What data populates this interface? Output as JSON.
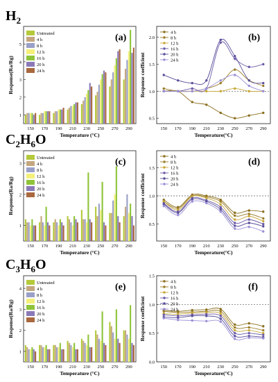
{
  "series_colors": [
    "#b5c93b",
    "#c4a77f",
    "#9aa0c8",
    "#f4f07a",
    "#8fc43a",
    "#8b7ab8",
    "#a9683e"
  ],
  "line_colors": [
    "#8b6f1e",
    "#9a7e2a",
    "#c7a83a",
    "#6b5aa7",
    "#5a4e9a",
    "#9b8fd6",
    "#1a1a1a"
  ],
  "chart_data": [
    {
      "panel": "(a)",
      "gas": "H2",
      "type": "bar",
      "ylabel": "Response(Ra/Rg)",
      "xlabel": "Temperature (°C)",
      "categories": [
        "150",
        "170",
        "190",
        "210",
        "230",
        "250",
        "270",
        "290"
      ],
      "ylim": [
        0.5,
        6.0
      ],
      "yticks": [
        1,
        2,
        3,
        4,
        5
      ],
      "series": [
        {
          "name": "Untreated",
          "values": [
            1.0,
            1.0,
            1.1,
            1.3,
            1.6,
            2.1,
            2.6,
            3.0
          ]
        },
        {
          "name": "4 h",
          "values": [
            1.1,
            1.1,
            1.2,
            1.4,
            1.8,
            2.3,
            3.0,
            3.6
          ]
        },
        {
          "name": "8 h",
          "values": [
            1.1,
            1.1,
            1.2,
            1.5,
            2.0,
            2.7,
            3.4,
            4.1
          ]
        },
        {
          "name": "12 h",
          "values": [
            1.1,
            1.2,
            1.3,
            1.5,
            2.2,
            3.0,
            3.8,
            4.6
          ]
        },
        {
          "name": "16 h",
          "values": [
            1.1,
            1.2,
            1.3,
            1.6,
            2.4,
            3.3,
            4.2,
            5.8
          ]
        },
        {
          "name": "20 h",
          "values": [
            1.0,
            1.2,
            1.3,
            1.7,
            2.8,
            3.5,
            4.6,
            4.5
          ]
        },
        {
          "name": "24 h",
          "values": [
            1.1,
            1.2,
            1.4,
            1.7,
            2.6,
            3.4,
            4.7,
            4.8
          ]
        }
      ]
    },
    {
      "panel": "(b)",
      "type": "line",
      "ylabel": "Response coefficient",
      "xlabel": "Temperature(°C)",
      "x": [
        150,
        170,
        190,
        210,
        230,
        250,
        270,
        290
      ],
      "ylim": [
        0.4,
        2.2
      ],
      "yticks": [
        0.5,
        1.0,
        1.5,
        2.0
      ],
      "reference_y": 1.0,
      "series": [
        {
          "name": "4 h",
          "values": [
            1.0,
            1.0,
            0.8,
            0.75,
            0.6,
            0.5,
            0.55,
            0.6
          ]
        },
        {
          "name": "8 h",
          "values": [
            1.05,
            1.0,
            1.0,
            1.05,
            1.15,
            1.4,
            1.2,
            1.1
          ]
        },
        {
          "name": "12 h",
          "values": [
            1.0,
            1.0,
            1.0,
            1.0,
            1.0,
            1.05,
            1.0,
            1.0
          ]
        },
        {
          "name": "16 h",
          "values": [
            1.0,
            1.0,
            1.05,
            1.05,
            1.9,
            1.6,
            1.45,
            1.5
          ]
        },
        {
          "name": "20 h",
          "values": [
            1.3,
            1.2,
            1.15,
            1.2,
            1.95,
            1.65,
            1.2,
            1.15
          ]
        },
        {
          "name": "24 h",
          "values": [
            1.0,
            1.0,
            1.0,
            1.05,
            1.2,
            1.3,
            1.1,
            1.0
          ]
        }
      ]
    },
    {
      "panel": "(c)",
      "gas": "C2H6O",
      "type": "bar",
      "ylabel": "Response(Ra/Rg)",
      "xlabel": "Temperature (°C)",
      "categories": [
        "150",
        "170",
        "190",
        "210",
        "230",
        "250",
        "270",
        "290"
      ],
      "ylim": [
        0.5,
        3.4
      ],
      "yticks": [
        1,
        2,
        3
      ],
      "series": [
        {
          "name": "Untreated",
          "values": [
            1.2,
            1.1,
            1.1,
            1.3,
            1.5,
            1.6,
            1.4,
            1.3
          ]
        },
        {
          "name": "4 h",
          "values": [
            1.1,
            1.3,
            1.2,
            1.2,
            1.2,
            1.3,
            1.4,
            1.6
          ]
        },
        {
          "name": "8 h",
          "values": [
            1.1,
            1.1,
            1.1,
            1.1,
            1.2,
            1.7,
            1.8,
            2.0
          ]
        },
        {
          "name": "12 h",
          "values": [
            1.0,
            1.0,
            1.0,
            1.0,
            1.1,
            1.5,
            2.0,
            1.4
          ]
        },
        {
          "name": "16 h",
          "values": [
            1.2,
            1.6,
            1.2,
            1.3,
            2.7,
            2.4,
            2.9,
            1.7
          ]
        },
        {
          "name": "20 h",
          "values": [
            1.0,
            1.1,
            1.1,
            1.2,
            1.2,
            1.1,
            1.3,
            1.3
          ]
        },
        {
          "name": "24 h",
          "values": [
            1.0,
            1.0,
            1.0,
            1.1,
            1.1,
            1.0,
            1.1,
            1.0
          ]
        }
      ]
    },
    {
      "panel": "(d)",
      "type": "line",
      "ylabel": "Response coefficient",
      "xlabel": "Temperature(°C)",
      "x": [
        150,
        170,
        190,
        210,
        230,
        250,
        270,
        290
      ],
      "ylim": [
        0.2,
        1.8
      ],
      "yticks": [
        0.5,
        1.0,
        1.5
      ],
      "reference_y": 1.0,
      "series": [
        {
          "name": "4 h",
          "values": [
            0.93,
            0.8,
            1.02,
            1.0,
            0.93,
            0.7,
            0.74,
            0.72
          ]
        },
        {
          "name": "8 h",
          "values": [
            0.9,
            0.78,
            1.0,
            0.98,
            0.9,
            0.65,
            0.68,
            0.6
          ]
        },
        {
          "name": "12 h",
          "values": [
            0.9,
            0.75,
            0.99,
            0.96,
            0.85,
            0.58,
            0.64,
            0.55
          ]
        },
        {
          "name": "16 h",
          "values": [
            0.87,
            0.72,
            0.96,
            0.92,
            0.8,
            0.52,
            0.58,
            0.5
          ]
        },
        {
          "name": "20 h",
          "values": [
            0.85,
            0.7,
            0.94,
            0.9,
            0.76,
            0.47,
            0.52,
            0.46
          ]
        },
        {
          "name": "24 h",
          "values": [
            0.82,
            0.66,
            0.9,
            0.87,
            0.72,
            0.42,
            0.45,
            0.37
          ]
        }
      ]
    },
    {
      "panel": "(e)",
      "gas": "C3H6O",
      "type": "bar",
      "ylabel": "Response(Ra/Rg)",
      "xlabel": "Temperature (°C)",
      "categories": [
        "150",
        "170",
        "190",
        "210",
        "230",
        "250",
        "270",
        "290"
      ],
      "ylim": [
        0.5,
        4.6
      ],
      "yticks": [
        1,
        2,
        3,
        4
      ],
      "series": [
        {
          "name": "Untreated",
          "values": [
            1.3,
            1.3,
            1.3,
            1.5,
            1.6,
            2.0,
            2.4,
            2.0
          ]
        },
        {
          "name": "4 h",
          "values": [
            1.2,
            1.3,
            1.3,
            1.4,
            1.5,
            1.8,
            2.2,
            2.0
          ]
        },
        {
          "name": "8 h",
          "values": [
            1.1,
            1.2,
            1.2,
            1.3,
            1.4,
            1.6,
            1.9,
            1.8
          ]
        },
        {
          "name": "12 h",
          "values": [
            1.1,
            1.2,
            1.2,
            1.2,
            1.3,
            1.5,
            1.6,
            1.6
          ]
        },
        {
          "name": "16 h",
          "values": [
            1.2,
            1.3,
            1.4,
            1.4,
            1.8,
            2.9,
            3.0,
            3.2
          ]
        },
        {
          "name": "20 h",
          "values": [
            1.1,
            1.1,
            1.1,
            1.1,
            1.2,
            1.4,
            1.6,
            1.4
          ]
        },
        {
          "name": "24 h",
          "values": [
            1.0,
            1.1,
            1.1,
            1.1,
            1.2,
            1.3,
            1.4,
            1.3
          ]
        }
      ]
    },
    {
      "panel": "(f)",
      "type": "line",
      "ylabel": "Response coefficient",
      "xlabel": "Temperature(°C)",
      "x": [
        150,
        170,
        190,
        210,
        230,
        250,
        270,
        290
      ],
      "ylim": [
        0.0,
        1.5
      ],
      "yticks": [
        0.0,
        0.5,
        1.0,
        1.5
      ],
      "reference_y": 1.0,
      "series": [
        {
          "name": "4 h",
          "values": [
            0.9,
            0.88,
            0.9,
            0.91,
            0.92,
            0.65,
            0.67,
            0.62
          ]
        },
        {
          "name": "8 h",
          "values": [
            0.88,
            0.86,
            0.87,
            0.88,
            0.88,
            0.6,
            0.6,
            0.55
          ]
        },
        {
          "name": "12 h",
          "values": [
            0.84,
            0.83,
            0.85,
            0.86,
            0.84,
            0.55,
            0.55,
            0.5
          ]
        },
        {
          "name": "16 h",
          "values": [
            0.82,
            0.8,
            0.82,
            0.83,
            0.8,
            0.5,
            0.5,
            0.47
          ]
        },
        {
          "name": "20 h",
          "values": [
            0.78,
            0.77,
            0.8,
            0.8,
            0.75,
            0.45,
            0.45,
            0.43
          ]
        },
        {
          "name": "24 h",
          "values": [
            0.76,
            0.73,
            0.72,
            0.71,
            0.7,
            0.4,
            0.42,
            0.41
          ]
        }
      ]
    }
  ],
  "gas_labels": [
    {
      "main": "H",
      "sub": "2",
      "rest": ""
    },
    {
      "main": "C",
      "sub": "2",
      "rest": "H",
      "sub2": "6",
      "rest2": "O"
    },
    {
      "main": "C",
      "sub": "3",
      "rest": "H",
      "sub2": "6",
      "rest2": "O"
    }
  ]
}
